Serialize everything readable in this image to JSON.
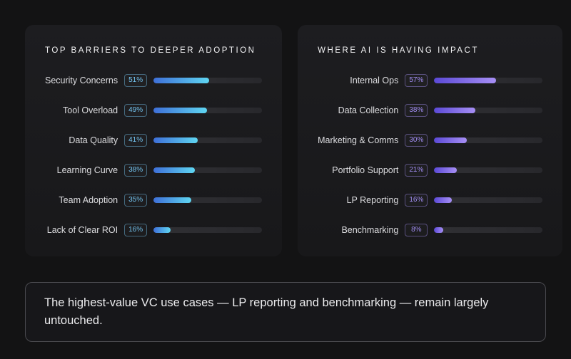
{
  "page": {
    "background": "#131314"
  },
  "charts": [
    {
      "title": "TOP BARRIERS TO DEEPER ADOPTION",
      "accent": "#73c4f0",
      "bar_gradient": [
        "#3e6fd8",
        "#5fd6f2"
      ],
      "items": [
        {
          "label": "Security Concerns",
          "pct": "51%",
          "value": 51
        },
        {
          "label": "Tool Overload",
          "pct": "49%",
          "value": 49
        },
        {
          "label": "Data Quality",
          "pct": "41%",
          "value": 41
        },
        {
          "label": "Learning Curve",
          "pct": "38%",
          "value": 38
        },
        {
          "label": "Team Adoption",
          "pct": "35%",
          "value": 35
        },
        {
          "label": "Lack of Clear ROI",
          "pct": "16%",
          "value": 16
        }
      ]
    },
    {
      "title": "WHERE AI IS HAVING IMPACT",
      "accent": "#a18df2",
      "bar_gradient": [
        "#5b49d6",
        "#a78ff5"
      ],
      "items": [
        {
          "label": "Internal Ops",
          "pct": "57%",
          "value": 57
        },
        {
          "label": "Data Collection",
          "pct": "38%",
          "value": 38
        },
        {
          "label": "Marketing & Comms",
          "pct": "30%",
          "value": 30
        },
        {
          "label": "Portfolio Support",
          "pct": "21%",
          "value": 21
        },
        {
          "label": "LP Reporting",
          "pct": "16%",
          "value": 16
        },
        {
          "label": "Benchmarking",
          "pct": "8%",
          "value": 8
        }
      ]
    }
  ],
  "callout": {
    "text": "The highest-value VC use cases — LP reporting and benchmarking — remain largely untouched."
  },
  "chart_data": [
    {
      "type": "bar",
      "orientation": "horizontal",
      "title": "TOP BARRIERS TO DEEPER ADOPTION",
      "categories": [
        "Security Concerns",
        "Tool Overload",
        "Data Quality",
        "Learning Curve",
        "Team Adoption",
        "Lack of Clear ROI"
      ],
      "values": [
        51,
        49,
        41,
        38,
        35,
        16
      ],
      "unit": "%",
      "xlim": [
        0,
        100
      ],
      "grid": false,
      "legend": false,
      "bar_color_gradient": [
        "#3e6fd8",
        "#5fd6f2"
      ]
    },
    {
      "type": "bar",
      "orientation": "horizontal",
      "title": "WHERE AI IS HAVING IMPACT",
      "categories": [
        "Internal Ops",
        "Data Collection",
        "Marketing & Comms",
        "Portfolio Support",
        "LP Reporting",
        "Benchmarking"
      ],
      "values": [
        57,
        38,
        30,
        21,
        16,
        8
      ],
      "unit": "%",
      "xlim": [
        0,
        100
      ],
      "grid": false,
      "legend": false,
      "bar_color_gradient": [
        "#5b49d6",
        "#a78ff5"
      ]
    }
  ]
}
